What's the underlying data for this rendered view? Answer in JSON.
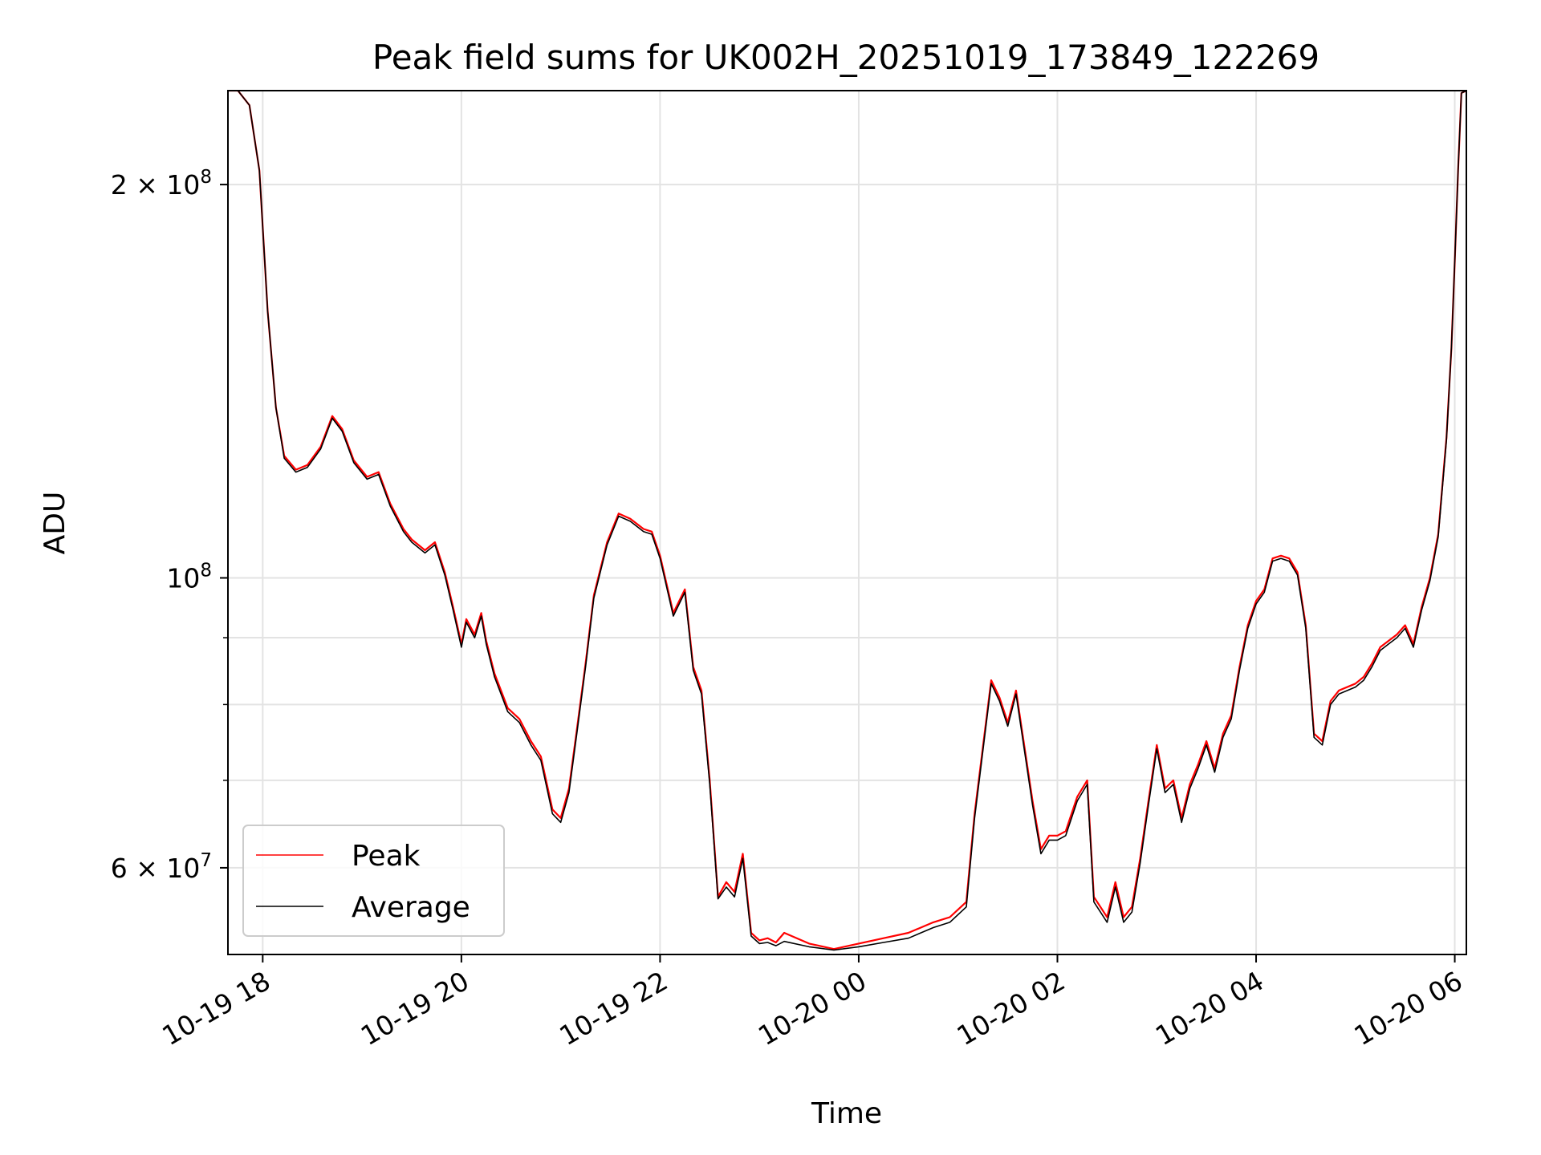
{
  "chart_data": {
    "type": "line",
    "title": "Peak field sums for UK002H_20251019_173849_122269",
    "xlabel": "Time",
    "ylabel": "ADU",
    "y_scale": "log",
    "ylim": [
      51500000,
      236000000
    ],
    "xlim": [
      "2025-10-19 17:39",
      "2025-10-20 06:07"
    ],
    "grid": true,
    "legend_position": "lower-left",
    "colors": {
      "Peak": "#ff0000",
      "Average": "#000000"
    },
    "x_ticks": [
      {
        "value": "2025-10-19 18:00",
        "label": "10-19 18"
      },
      {
        "value": "2025-10-19 20:00",
        "label": "10-19 20"
      },
      {
        "value": "2025-10-19 22:00",
        "label": "10-19 22"
      },
      {
        "value": "2025-10-20 00:00",
        "label": "10-20 00"
      },
      {
        "value": "2025-10-20 02:00",
        "label": "10-20 02"
      },
      {
        "value": "2025-10-20 04:00",
        "label": "10-20 04"
      },
      {
        "value": "2025-10-20 06:00",
        "label": "10-20 06"
      }
    ],
    "y_ticks": [
      {
        "value": 60000000,
        "label_base": "6 × 10",
        "label_exp": "7"
      },
      {
        "value": 100000000,
        "label_base": "10",
        "label_exp": "8"
      },
      {
        "value": 200000000,
        "label_base": "2 × 10",
        "label_exp": "8"
      }
    ],
    "y_minor_ticks": [
      70000000,
      80000000,
      90000000
    ],
    "series": [
      {
        "name": "Peak",
        "x": [
          "2025-10-19 17:38",
          "2025-10-19 17:45",
          "2025-10-19 17:52",
          "2025-10-19 17:58",
          "2025-10-19 18:03",
          "2025-10-19 18:08",
          "2025-10-19 18:13",
          "2025-10-19 18:20",
          "2025-10-19 18:27",
          "2025-10-19 18:35",
          "2025-10-19 18:42",
          "2025-10-19 18:48",
          "2025-10-19 18:55",
          "2025-10-19 19:03",
          "2025-10-19 19:10",
          "2025-10-19 19:17",
          "2025-10-19 19:25",
          "2025-10-19 19:30",
          "2025-10-19 19:38",
          "2025-10-19 19:44",
          "2025-10-19 19:50",
          "2025-10-19 19:55",
          "2025-10-19 20:00",
          "2025-10-19 20:03",
          "2025-10-19 20:08",
          "2025-10-19 20:12",
          "2025-10-19 20:15",
          "2025-10-19 20:20",
          "2025-10-19 20:28",
          "2025-10-19 20:35",
          "2025-10-19 20:42",
          "2025-10-19 20:48",
          "2025-10-19 20:55",
          "2025-10-19 21:00",
          "2025-10-19 21:05",
          "2025-10-19 21:10",
          "2025-10-19 21:15",
          "2025-10-19 21:20",
          "2025-10-19 21:28",
          "2025-10-19 21:35",
          "2025-10-19 21:42",
          "2025-10-19 21:50",
          "2025-10-19 21:55",
          "2025-10-19 22:00",
          "2025-10-19 22:08",
          "2025-10-19 22:15",
          "2025-10-19 22:20",
          "2025-10-19 22:25",
          "2025-10-19 22:30",
          "2025-10-19 22:35",
          "2025-10-19 22:40",
          "2025-10-19 22:45",
          "2025-10-19 22:50",
          "2025-10-19 22:55",
          "2025-10-19 23:00",
          "2025-10-19 23:05",
          "2025-10-19 23:10",
          "2025-10-19 23:15",
          "2025-10-19 23:30",
          "2025-10-19 23:45",
          "2025-10-20 00:00",
          "2025-10-20 00:15",
          "2025-10-20 00:30",
          "2025-10-20 00:45",
          "2025-10-20 00:55",
          "2025-10-20 01:05",
          "2025-10-20 01:10",
          "2025-10-20 01:16",
          "2025-10-20 01:20",
          "2025-10-20 01:25",
          "2025-10-20 01:30",
          "2025-10-20 01:35",
          "2025-10-20 01:45",
          "2025-10-20 01:50",
          "2025-10-20 01:55",
          "2025-10-20 02:00",
          "2025-10-20 02:05",
          "2025-10-20 02:12",
          "2025-10-20 02:18",
          "2025-10-20 02:22",
          "2025-10-20 02:30",
          "2025-10-20 02:35",
          "2025-10-20 02:40",
          "2025-10-20 02:45",
          "2025-10-20 02:50",
          "2025-10-20 02:55",
          "2025-10-20 03:00",
          "2025-10-20 03:05",
          "2025-10-20 03:10",
          "2025-10-20 03:15",
          "2025-10-20 03:20",
          "2025-10-20 03:25",
          "2025-10-20 03:30",
          "2025-10-20 03:35",
          "2025-10-20 03:40",
          "2025-10-20 03:45",
          "2025-10-20 03:50",
          "2025-10-20 03:55",
          "2025-10-20 04:00",
          "2025-10-20 04:05",
          "2025-10-20 04:10",
          "2025-10-20 04:15",
          "2025-10-20 04:20",
          "2025-10-20 04:25",
          "2025-10-20 04:30",
          "2025-10-20 04:35",
          "2025-10-20 04:40",
          "2025-10-20 04:45",
          "2025-10-20 04:50",
          "2025-10-20 05:00",
          "2025-10-20 05:05",
          "2025-10-20 05:10",
          "2025-10-20 05:15",
          "2025-10-20 05:20",
          "2025-10-20 05:25",
          "2025-10-20 05:30",
          "2025-10-20 05:35",
          "2025-10-20 05:40",
          "2025-10-20 05:45",
          "2025-10-20 05:50",
          "2025-10-20 05:55",
          "2025-10-20 05:58",
          "2025-10-20 06:00",
          "2025-10-20 06:02",
          "2025-10-20 06:04",
          "2025-10-20 06:07"
        ],
        "values": [
          236000000,
          236000000,
          230000000,
          205000000,
          160000000,
          135000000,
          124000000,
          121000000,
          122000000,
          126000000,
          133000000,
          130000000,
          123000000,
          119500000,
          120500000,
          114000000,
          109000000,
          107000000,
          105000000,
          106500000,
          101000000,
          95000000,
          89000000,
          93000000,
          90500000,
          94000000,
          89500000,
          84500000,
          79500000,
          78000000,
          75000000,
          73000000,
          66500000,
          65500000,
          69000000,
          77000000,
          86000000,
          97000000,
          106500000,
          112000000,
          111000000,
          109000000,
          108500000,
          104000000,
          94000000,
          98000000,
          85500000,
          82000000,
          70000000,
          57000000,
          58500000,
          57500000,
          61500000,
          53500000,
          52800000,
          53000000,
          52600000,
          53500000,
          52500000,
          52000000,
          52500000,
          53000000,
          53500000,
          54500000,
          55000000,
          56500000,
          66000000,
          76000000,
          83500000,
          81000000,
          77500000,
          82000000,
          67500000,
          62000000,
          63500000,
          63500000,
          64000000,
          68000000,
          70000000,
          57000000,
          55000000,
          58500000,
          55000000,
          56000000,
          61000000,
          67500000,
          74500000,
          69000000,
          70000000,
          65500000,
          69500000,
          72000000,
          75000000,
          71500000,
          76000000,
          78500000,
          85500000,
          92000000,
          96000000,
          98000000,
          103500000,
          104000000,
          103500000,
          101000000,
          92000000,
          76000000,
          75000000,
          80500000,
          82000000,
          83000000,
          84000000,
          86000000,
          88500000,
          89500000,
          90500000,
          92000000,
          89000000,
          95000000,
          100000000,
          108000000,
          128000000,
          150000000,
          175000000,
          205000000,
          235000000,
          236000000
        ]
      },
      {
        "name": "Average",
        "x": [
          "2025-10-19 17:38",
          "2025-10-19 17:45",
          "2025-10-19 17:52",
          "2025-10-19 17:58",
          "2025-10-19 18:03",
          "2025-10-19 18:08",
          "2025-10-19 18:13",
          "2025-10-19 18:20",
          "2025-10-19 18:27",
          "2025-10-19 18:35",
          "2025-10-19 18:42",
          "2025-10-19 18:48",
          "2025-10-19 18:55",
          "2025-10-19 19:03",
          "2025-10-19 19:10",
          "2025-10-19 19:17",
          "2025-10-19 19:25",
          "2025-10-19 19:30",
          "2025-10-19 19:38",
          "2025-10-19 19:44",
          "2025-10-19 19:50",
          "2025-10-19 19:55",
          "2025-10-19 20:00",
          "2025-10-19 20:03",
          "2025-10-19 20:08",
          "2025-10-19 20:12",
          "2025-10-19 20:15",
          "2025-10-19 20:20",
          "2025-10-19 20:28",
          "2025-10-19 20:35",
          "2025-10-19 20:42",
          "2025-10-19 20:48",
          "2025-10-19 20:55",
          "2025-10-19 21:00",
          "2025-10-19 21:05",
          "2025-10-19 21:10",
          "2025-10-19 21:15",
          "2025-10-19 21:20",
          "2025-10-19 21:28",
          "2025-10-19 21:35",
          "2025-10-19 21:42",
          "2025-10-19 21:50",
          "2025-10-19 21:55",
          "2025-10-19 22:00",
          "2025-10-19 22:08",
          "2025-10-19 22:15",
          "2025-10-19 22:20",
          "2025-10-19 22:25",
          "2025-10-19 22:30",
          "2025-10-19 22:35",
          "2025-10-19 22:40",
          "2025-10-19 22:45",
          "2025-10-19 22:50",
          "2025-10-19 22:55",
          "2025-10-19 23:00",
          "2025-10-19 23:05",
          "2025-10-19 23:10",
          "2025-10-19 23:15",
          "2025-10-19 23:30",
          "2025-10-19 23:45",
          "2025-10-20 00:00",
          "2025-10-20 00:15",
          "2025-10-20 00:30",
          "2025-10-20 00:45",
          "2025-10-20 00:55",
          "2025-10-20 01:05",
          "2025-10-20 01:10",
          "2025-10-20 01:16",
          "2025-10-20 01:20",
          "2025-10-20 01:25",
          "2025-10-20 01:30",
          "2025-10-20 01:35",
          "2025-10-20 01:45",
          "2025-10-20 01:50",
          "2025-10-20 01:55",
          "2025-10-20 02:00",
          "2025-10-20 02:05",
          "2025-10-20 02:12",
          "2025-10-20 02:18",
          "2025-10-20 02:22",
          "2025-10-20 02:30",
          "2025-10-20 02:35",
          "2025-10-20 02:40",
          "2025-10-20 02:45",
          "2025-10-20 02:50",
          "2025-10-20 02:55",
          "2025-10-20 03:00",
          "2025-10-20 03:05",
          "2025-10-20 03:10",
          "2025-10-20 03:15",
          "2025-10-20 03:20",
          "2025-10-20 03:25",
          "2025-10-20 03:30",
          "2025-10-20 03:35",
          "2025-10-20 03:40",
          "2025-10-20 03:45",
          "2025-10-20 03:50",
          "2025-10-20 03:55",
          "2025-10-20 04:00",
          "2025-10-20 04:05",
          "2025-10-20 04:10",
          "2025-10-20 04:15",
          "2025-10-20 04:20",
          "2025-10-20 04:25",
          "2025-10-20 04:30",
          "2025-10-20 04:35",
          "2025-10-20 04:40",
          "2025-10-20 04:45",
          "2025-10-20 04:50",
          "2025-10-20 05:00",
          "2025-10-20 05:05",
          "2025-10-20 05:10",
          "2025-10-20 05:15",
          "2025-10-20 05:20",
          "2025-10-20 05:25",
          "2025-10-20 05:30",
          "2025-10-20 05:35",
          "2025-10-20 05:40",
          "2025-10-20 05:45",
          "2025-10-20 05:50",
          "2025-10-20 05:55",
          "2025-10-20 05:58",
          "2025-10-20 06:00",
          "2025-10-20 06:02",
          "2025-10-20 06:04",
          "2025-10-20 06:07"
        ],
        "values": [
          236000000,
          236000000,
          230000000,
          205000000,
          160000000,
          135000000,
          123500000,
          120500000,
          121500000,
          125500000,
          132500000,
          129500000,
          122500000,
          119000000,
          120000000,
          113500000,
          108500000,
          106500000,
          104500000,
          106000000,
          100500000,
          94500000,
          88500000,
          92500000,
          90000000,
          93500000,
          89000000,
          84000000,
          79000000,
          77500000,
          74500000,
          72500000,
          66000000,
          65000000,
          68500000,
          76500000,
          85500000,
          96500000,
          106000000,
          111500000,
          110500000,
          108500000,
          108000000,
          103500000,
          93500000,
          97500000,
          85000000,
          81500000,
          69500000,
          56800000,
          58000000,
          57000000,
          61000000,
          53200000,
          52500000,
          52600000,
          52300000,
          52700000,
          52200000,
          51900000,
          52200000,
          52600000,
          53000000,
          54000000,
          54500000,
          56000000,
          65500000,
          75500000,
          83000000,
          80500000,
          77000000,
          81500000,
          67000000,
          61500000,
          63000000,
          63000000,
          63500000,
          67500000,
          69500000,
          56500000,
          54500000,
          58000000,
          54500000,
          55500000,
          60500000,
          67000000,
          74000000,
          68500000,
          69500000,
          65000000,
          69000000,
          71500000,
          74500000,
          71000000,
          75500000,
          78000000,
          85000000,
          91500000,
          95500000,
          97500000,
          103000000,
          103500000,
          103000000,
          100500000,
          91500000,
          75500000,
          74500000,
          80000000,
          81500000,
          82500000,
          83500000,
          85500000,
          88000000,
          89000000,
          90000000,
          91500000,
          88500000,
          94500000,
          99500000,
          107500000,
          127500000,
          150000000,
          175000000,
          205000000,
          235000000,
          236000000
        ]
      }
    ]
  }
}
